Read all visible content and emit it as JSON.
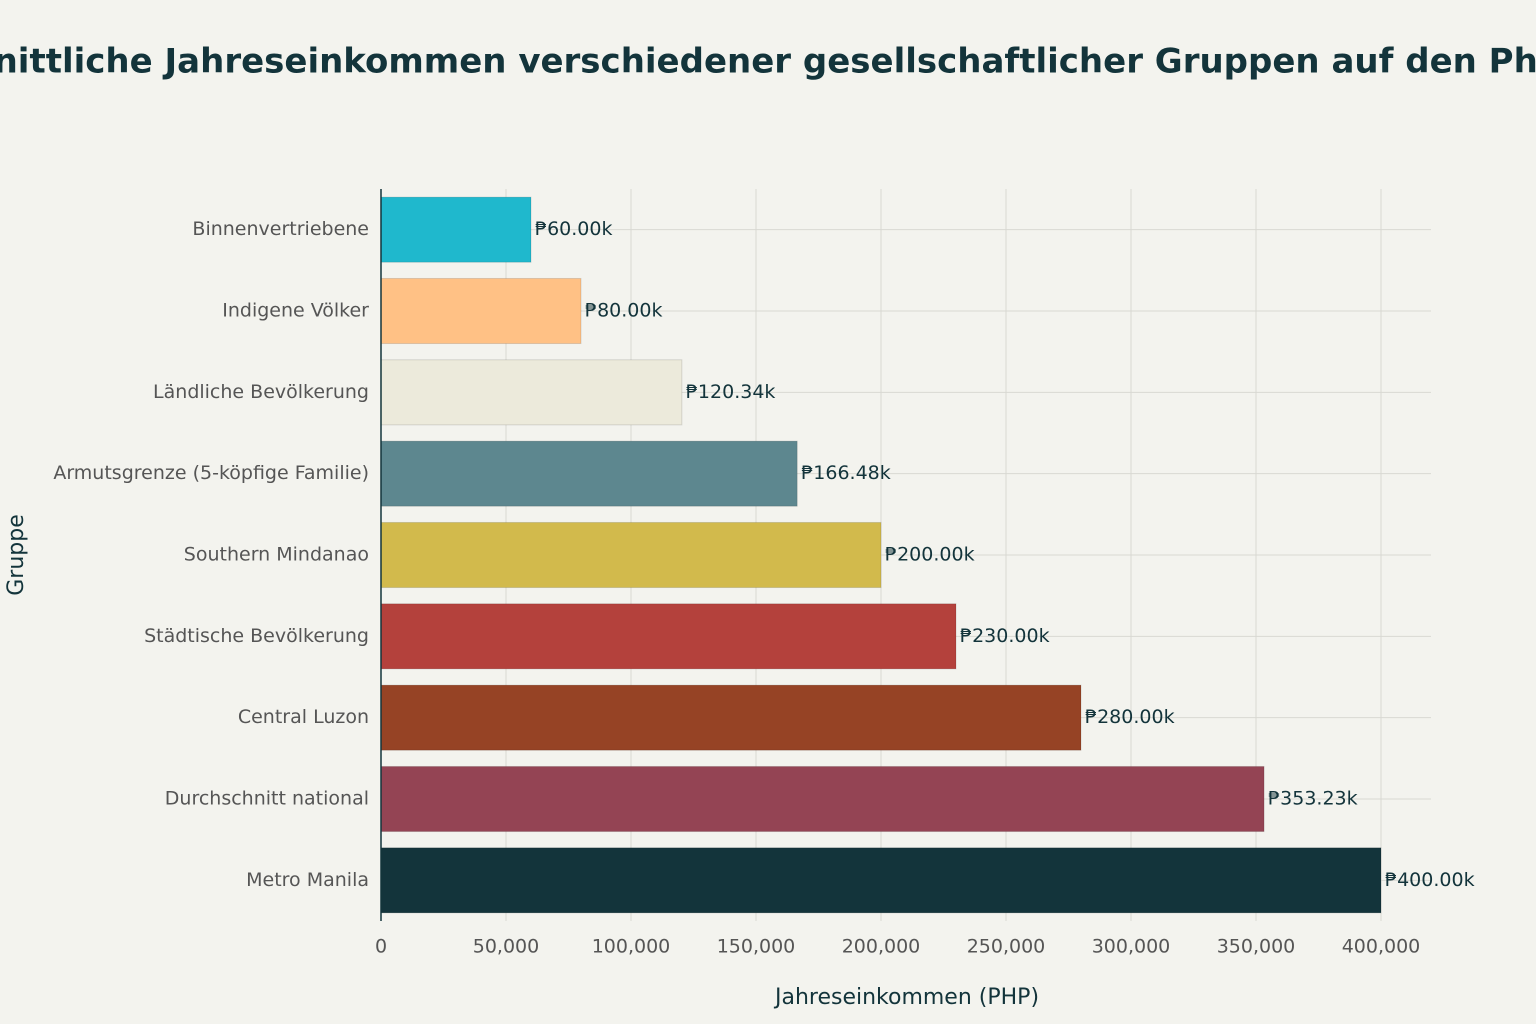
{
  "chart_data": {
    "type": "hbar",
    "title": "Durchschnittliche Jahreseinkommen verschiedener gesellschaftlicher Gruppen auf den Philippinen",
    "xlabel": "Jahreseinkommen (PHP)",
    "ylabel": "Gruppe",
    "categories": [
      "Binnenvertriebene",
      "Indigene Völker",
      "Ländliche Bevölkerung",
      "Armutsgrenze (5-köpfige Familie)",
      "Southern Mindanao",
      "Städtische Bevölkerung",
      "Central Luzon",
      "Durchschnitt national",
      "Metro Manila"
    ],
    "values": [
      60000,
      80000,
      120340,
      166480,
      200000,
      230000,
      280000,
      353230,
      400000
    ],
    "value_labels": [
      "₱60.00k",
      "₱80.00k",
      "₱120.34k",
      "₱166.48k",
      "₱200.00k",
      "₱230.00k",
      "₱280.00k",
      "₱353.23k",
      "₱400.00k"
    ],
    "colors": [
      "#1fb8cd",
      "#ffc185",
      "#eceadb",
      "#5d878f",
      "#d2ba4c",
      "#b4413c",
      "#964325",
      "#944454",
      "#13343b"
    ],
    "xlim": [
      0,
      420000
    ],
    "xticks": [
      0,
      {
        "value": 50000,
        "label": "50,000"
      },
      {
        "value": 100000,
        "label": "100,000"
      },
      {
        "value": 150000,
        "label": "150,000"
      },
      {
        "value": 200000,
        "label": "200,000"
      },
      {
        "value": 250000,
        "label": "250,000"
      },
      {
        "value": 300000,
        "label": "300,000"
      },
      {
        "value": 350000,
        "label": "350,000"
      },
      {
        "value": 400000,
        "label": "400,000"
      }
    ],
    "grid": true
  }
}
